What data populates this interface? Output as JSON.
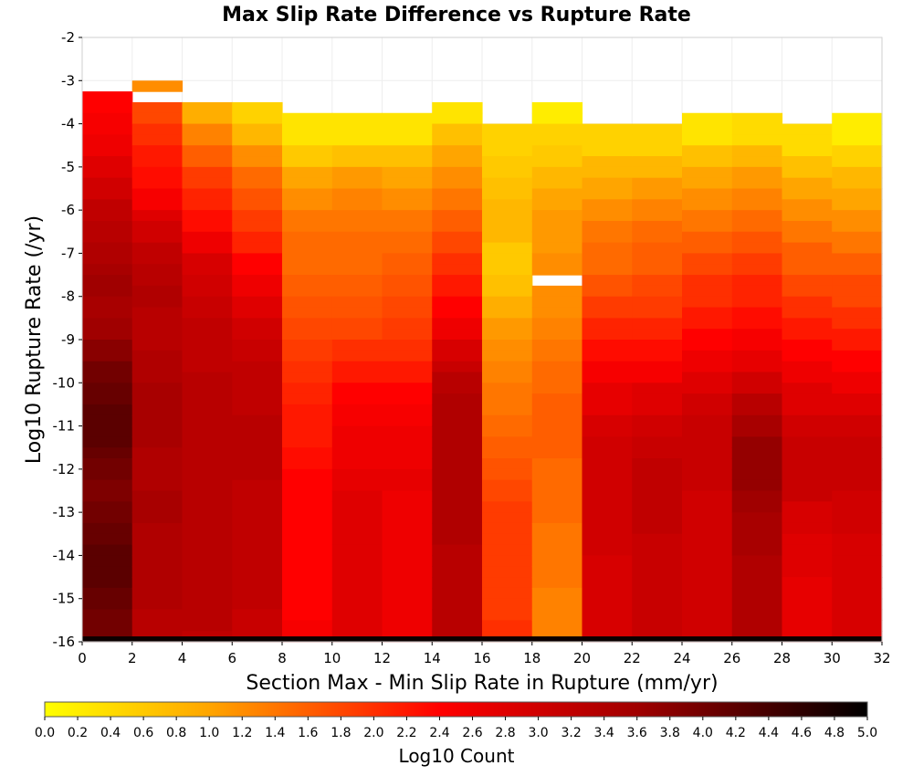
{
  "chart_data": {
    "type": "heatmap",
    "title": "Max Slip Rate Difference vs Rupture Rate",
    "xlabel": "Section Max - Min Slip Rate in Rupture (mm/yr)",
    "ylabel": "Log10 Rupture Rate (/yr)",
    "xlim": [
      0,
      32
    ],
    "ylim": [
      -16,
      -2
    ],
    "x_ticks": [
      "0",
      "2",
      "4",
      "6",
      "8",
      "10",
      "12",
      "14",
      "16",
      "18",
      "20",
      "22",
      "24",
      "26",
      "28",
      "30",
      "32"
    ],
    "y_ticks": [
      "-2",
      "-3",
      "-4",
      "-5",
      "-6",
      "-7",
      "-8",
      "-9",
      "-10",
      "-11",
      "-12",
      "-13",
      "-14",
      "-15",
      "-16"
    ],
    "x_bin_edges": [
      0,
      2,
      4,
      6,
      8,
      10,
      12,
      14,
      16,
      18,
      20,
      22,
      24,
      26,
      28,
      30,
      32
    ],
    "y_bin_size": 0.25,
    "y_bin_top_start": -3.25,
    "column_top_y": [
      -3.25,
      -3.0,
      -3.5,
      -3.5,
      -3.75,
      -3.75,
      -3.75,
      -3.5,
      -4.0,
      -3.5,
      -4.0,
      -4.0,
      -3.75,
      -3.75,
      -4.0,
      -3.75
    ],
    "missing_cells": [
      {
        "x_bin": 9,
        "y_top": -7.5
      },
      {
        "x_bin": 1,
        "y_top": -3.25
      }
    ],
    "column_profiles": [
      [
        2.4,
        2.5,
        2.6,
        2.8,
        3.0,
        3.2,
        3.3,
        3.4,
        3.5,
        3.6,
        3.5,
        3.6,
        3.8,
        4.0,
        4.1,
        4.2,
        4.2,
        4.1,
        4.0,
        3.9,
        4.0,
        4.1,
        4.2,
        4.2,
        4.1,
        4.0,
        4.0
      ],
      [
        1.2,
        1.8,
        2.0,
        2.2,
        2.3,
        2.5,
        2.8,
        3.0,
        3.2,
        3.3,
        3.4,
        3.3,
        3.3,
        3.4,
        3.4,
        3.5,
        3.5,
        3.5,
        3.4,
        3.4,
        3.5,
        3.5,
        3.4,
        3.4,
        3.4,
        3.4,
        3.3,
        3.3
      ],
      [
        0.9,
        1.3,
        1.6,
        1.9,
        2.1,
        2.3,
        2.6,
        2.9,
        3.0,
        3.1,
        3.2,
        3.2,
        3.2,
        3.3,
        3.3,
        3.3,
        3.3,
        3.3,
        3.3,
        3.3,
        3.3,
        3.3,
        3.3,
        3.3,
        3.3,
        3.2
      ],
      [
        0.5,
        0.8,
        1.2,
        1.5,
        1.7,
        1.9,
        2.1,
        2.4,
        2.6,
        2.8,
        3.0,
        3.1,
        3.2,
        3.2,
        3.2,
        3.3,
        3.3,
        3.3,
        3.2,
        3.2,
        3.2,
        3.2,
        3.2,
        3.2,
        3.1,
        3.1
      ],
      [
        0.3,
        0.6,
        1.0,
        1.2,
        1.4,
        1.5,
        1.5,
        1.6,
        1.7,
        1.8,
        1.9,
        2.0,
        2.1,
        2.2,
        2.2,
        2.3,
        2.4,
        2.4,
        2.4,
        2.4,
        2.4,
        2.4,
        2.4,
        2.5
      ],
      [
        0.3,
        0.7,
        1.1,
        1.3,
        1.4,
        1.5,
        1.5,
        1.6,
        1.7,
        1.8,
        2.0,
        2.2,
        2.4,
        2.5,
        2.6,
        2.6,
        2.7,
        2.8,
        2.8,
        2.8,
        2.8,
        2.8,
        2.8,
        2.8
      ],
      [
        0.3,
        0.7,
        1.0,
        1.2,
        1.4,
        1.5,
        1.6,
        1.7,
        1.8,
        1.9,
        2.0,
        2.2,
        2.4,
        2.5,
        2.6,
        2.6,
        2.7,
        2.6,
        2.6,
        2.6,
        2.6,
        2.6,
        2.6,
        2.6
      ],
      [
        0.3,
        0.7,
        1.0,
        1.2,
        1.4,
        1.6,
        1.8,
        2.0,
        2.2,
        2.4,
        2.6,
        2.9,
        3.1,
        3.3,
        3.4,
        3.4,
        3.4,
        3.4,
        3.4,
        3.4,
        3.4,
        3.3,
        3.3,
        3.3,
        3.3,
        3.3
      ],
      [
        0.5,
        0.6,
        0.7,
        0.8,
        0.8,
        0.6,
        0.7,
        0.9,
        1.1,
        1.2,
        1.3,
        1.4,
        1.5,
        1.6,
        1.7,
        1.8,
        1.9,
        1.9,
        1.9,
        1.9,
        1.9,
        2.0
      ],
      [
        0.2,
        0.5,
        0.6,
        0.8,
        1.0,
        1.1,
        1.1,
        1.2,
        1.2,
        1.2,
        1.3,
        1.4,
        1.5,
        1.5,
        1.6,
        1.6,
        1.6,
        1.5,
        1.5,
        1.5,
        1.4,
        1.4,
        1.4,
        1.3,
        1.3,
        1.3
      ],
      [
        0.5,
        0.8,
        1.0,
        1.2,
        1.4,
        1.5,
        1.7,
        1.9,
        2.1,
        2.3,
        2.5,
        2.7,
        2.9,
        3.0,
        3.0,
        3.0,
        3.0,
        3.0,
        2.9,
        2.9,
        2.9,
        2.9
      ],
      [
        0.5,
        0.8,
        1.1,
        1.3,
        1.5,
        1.6,
        1.8,
        1.9,
        2.1,
        2.3,
        2.5,
        2.8,
        3.0,
        3.1,
        3.2,
        3.2,
        3.2,
        3.1,
        3.1,
        3.1,
        3.1,
        3.1
      ],
      [
        0.3,
        0.7,
        1.0,
        1.2,
        1.4,
        1.6,
        1.8,
        2.0,
        2.2,
        2.4,
        2.6,
        2.8,
        3.0,
        3.1,
        3.1,
        3.1,
        3.0,
        3.0,
        3.0,
        3.0,
        3.0,
        3.0,
        3.0
      ],
      [
        0.4,
        0.8,
        1.1,
        1.3,
        1.5,
        1.7,
        1.9,
        2.1,
        2.3,
        2.5,
        2.7,
        3.0,
        3.3,
        3.5,
        3.7,
        3.7,
        3.6,
        3.5,
        3.5,
        3.4,
        3.4,
        3.4,
        3.4
      ],
      [
        0.4,
        0.7,
        1.0,
        1.2,
        1.4,
        1.6,
        1.8,
        2.0,
        2.2,
        2.4,
        2.6,
        2.8,
        3.0,
        3.1,
        3.1,
        3.1,
        2.9,
        2.8,
        2.8,
        2.7,
        2.7,
        2.7
      ],
      [
        0.2,
        0.5,
        0.8,
        1.0,
        1.2,
        1.4,
        1.6,
        1.8,
        2.0,
        2.2,
        2.4,
        2.6,
        2.8,
        3.0,
        3.1,
        3.1,
        3.0,
        3.0,
        2.9,
        2.9,
        2.9,
        2.9,
        2.9
      ]
    ],
    "bottom_band": {
      "y_from": -16.0,
      "y_to": -15.875,
      "value": 4.9
    },
    "colorbar": {
      "label": "Log10 Count",
      "min": 0.0,
      "max": 5.0,
      "tick_labels": [
        "0.0",
        "0.2",
        "0.4",
        "0.6",
        "0.8",
        "1.0",
        "1.2",
        "1.4",
        "1.6",
        "1.8",
        "2.0",
        "2.2",
        "2.4",
        "2.6",
        "2.8",
        "3.0",
        "3.2",
        "3.4",
        "3.6",
        "3.8",
        "4.0",
        "4.2",
        "4.4",
        "4.6",
        "4.8",
        "5.0"
      ],
      "color_stops": [
        {
          "v": 0.0,
          "c": "#ffff00"
        },
        {
          "v": 1.0,
          "c": "#ffa500"
        },
        {
          "v": 2.4,
          "c": "#ff0000"
        },
        {
          "v": 3.6,
          "c": "#a00000"
        },
        {
          "v": 5.0,
          "c": "#000000"
        }
      ]
    }
  }
}
